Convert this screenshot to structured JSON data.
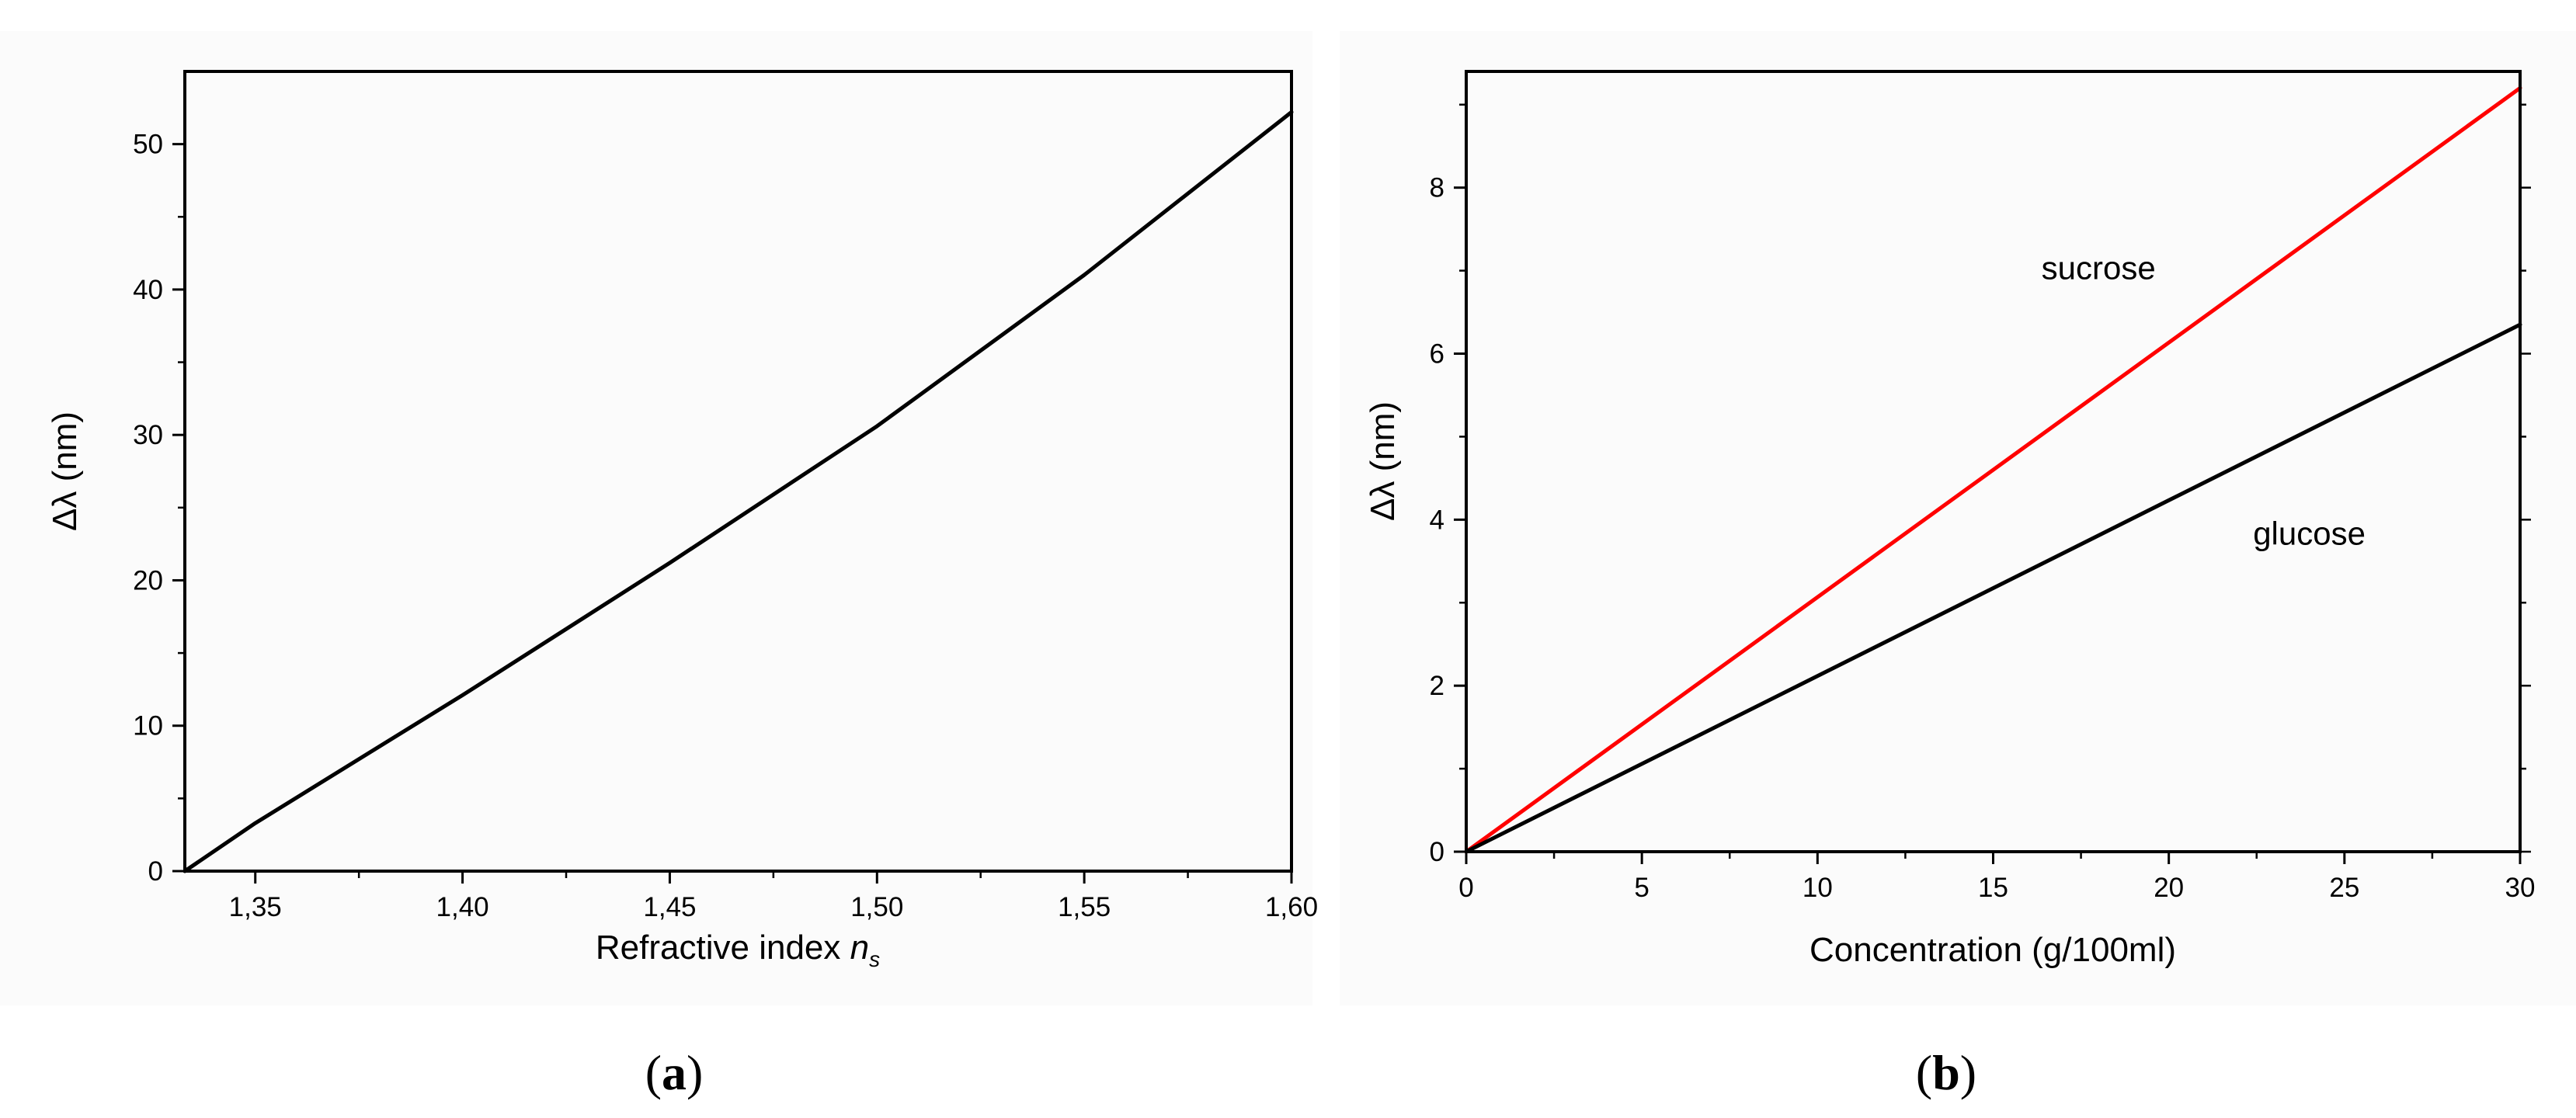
{
  "chart_data": [
    {
      "panel_label": "a",
      "type": "line",
      "xlabel": "Refractive index ",
      "xlabel_var": "n",
      "xlabel_sub": "s",
      "ylabel": "Δλ (nm)",
      "xlim": [
        1.333,
        1.6
      ],
      "ylim": [
        0,
        55
      ],
      "x_ticks": [
        {
          "value": 1.35,
          "label": "1,35"
        },
        {
          "value": 1.4,
          "label": "1,40"
        },
        {
          "value": 1.45,
          "label": "1,45"
        },
        {
          "value": 1.5,
          "label": "1,50"
        },
        {
          "value": 1.55,
          "label": "1,55"
        },
        {
          "value": 1.6,
          "label": "1,60"
        }
      ],
      "y_ticks": [
        {
          "value": 0,
          "label": "0"
        },
        {
          "value": 10,
          "label": "10"
        },
        {
          "value": 20,
          "label": "20"
        },
        {
          "value": 30,
          "label": "30"
        },
        {
          "value": 40,
          "label": "40"
        },
        {
          "value": 50,
          "label": "50"
        }
      ],
      "series": [
        {
          "color": "#000000",
          "x": [
            1.333,
            1.35,
            1.4,
            1.45,
            1.5,
            1.55,
            1.6
          ],
          "y": [
            0,
            3.3,
            12.1,
            21.2,
            30.6,
            41.0,
            52.2
          ]
        }
      ]
    },
    {
      "panel_label": "b",
      "type": "line",
      "xlabel": "Concentration (g/100ml)",
      "ylabel": "Δλ (nm)",
      "xlim": [
        0,
        30
      ],
      "ylim": [
        0,
        9.4
      ],
      "x_ticks": [
        {
          "value": 0,
          "label": "0"
        },
        {
          "value": 5,
          "label": "5"
        },
        {
          "value": 10,
          "label": "10"
        },
        {
          "value": 15,
          "label": "15"
        },
        {
          "value": 20,
          "label": "20"
        },
        {
          "value": 25,
          "label": "25"
        },
        {
          "value": 30,
          "label": "30"
        }
      ],
      "y_ticks": [
        {
          "value": 0,
          "label": "0"
        },
        {
          "value": 2,
          "label": "2"
        },
        {
          "value": 4,
          "label": "4"
        },
        {
          "value": 6,
          "label": "6"
        },
        {
          "value": 8,
          "label": "8"
        }
      ],
      "series": [
        {
          "color": "#ff0000",
          "label": "sucrose",
          "label_at": [
            18,
            6.9
          ],
          "x": [
            0,
            30
          ],
          "y": [
            0,
            9.2
          ]
        },
        {
          "color": "#000000",
          "label": "glucose",
          "label_at": [
            24,
            3.7
          ],
          "x": [
            0,
            30
          ],
          "y": [
            0,
            6.35
          ]
        }
      ]
    }
  ]
}
